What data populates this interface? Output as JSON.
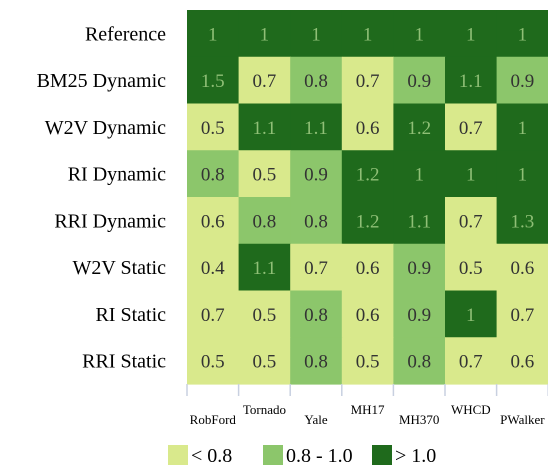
{
  "chart_data": {
    "type": "heatmap",
    "rows": [
      "Reference",
      "BM25 Dynamic",
      "W2V Dynamic",
      "RI Dynamic",
      "RRI Dynamic",
      "W2V Static",
      "RI Static",
      "RRI Static"
    ],
    "columns": [
      "RobFord",
      "Tornado",
      "Yale",
      "MH17",
      "MH370",
      "WHCD",
      "PWalker"
    ],
    "values": [
      [
        1,
        1,
        1,
        1,
        1,
        1,
        1
      ],
      [
        1.5,
        0.7,
        0.8,
        0.7,
        0.9,
        1.1,
        0.9
      ],
      [
        0.5,
        1.1,
        1.1,
        0.6,
        1.2,
        0.7,
        1
      ],
      [
        0.8,
        0.5,
        0.9,
        1.2,
        1,
        1,
        1
      ],
      [
        0.6,
        0.8,
        0.8,
        1.2,
        1.1,
        0.7,
        1.3
      ],
      [
        0.4,
        1.1,
        0.7,
        0.6,
        0.9,
        0.5,
        0.6
      ],
      [
        0.7,
        0.5,
        0.8,
        0.6,
        0.9,
        1,
        0.7
      ],
      [
        0.5,
        0.5,
        0.8,
        0.5,
        0.8,
        0.7,
        0.6
      ]
    ],
    "cell_classes": [
      [
        2,
        2,
        2,
        2,
        2,
        2,
        2
      ],
      [
        2,
        0,
        1,
        0,
        1,
        2,
        1
      ],
      [
        0,
        2,
        2,
        0,
        2,
        0,
        2
      ],
      [
        1,
        0,
        1,
        2,
        2,
        2,
        2
      ],
      [
        0,
        1,
        1,
        2,
        2,
        0,
        2
      ],
      [
        0,
        2,
        0,
        0,
        1,
        0,
        0
      ],
      [
        0,
        0,
        1,
        0,
        1,
        2,
        0
      ],
      [
        0,
        0,
        1,
        0,
        1,
        0,
        0
      ]
    ],
    "legend": [
      {
        "label": "< 0.8",
        "color": "#d9e98c"
      },
      {
        "label": "0.8 - 1.0",
        "color": "#8cc66b"
      },
      {
        "label": "> 1.0",
        "color": "#1f6a1c"
      }
    ],
    "text_colors": [
      "#333333",
      "#333333",
      "#8fbf76"
    ],
    "legend_placement": "bottom"
  }
}
